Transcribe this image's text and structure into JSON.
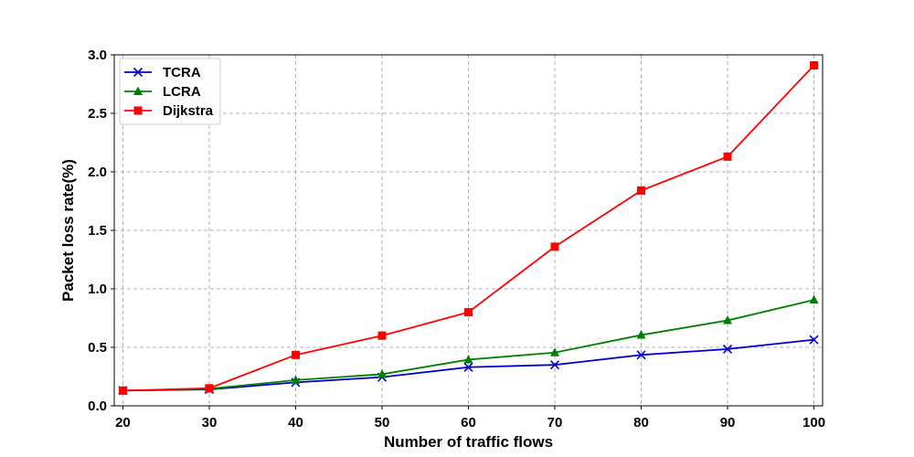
{
  "chart_data": {
    "type": "line",
    "xlabel": "Number of traffic flows",
    "ylabel": "Packet loss rate(%)",
    "x": [
      20,
      30,
      40,
      50,
      60,
      70,
      80,
      90,
      100
    ],
    "xlim": [
      19,
      101
    ],
    "ylim": [
      0,
      3.0
    ],
    "xticks": [
      "20",
      "30",
      "40",
      "50",
      "60",
      "70",
      "80",
      "90",
      "100"
    ],
    "yticks": [
      "0.0",
      "0.5",
      "1.0",
      "1.5",
      "2.0",
      "2.5",
      "3.0"
    ],
    "grid": true,
    "legend_position": "top-left",
    "series": [
      {
        "name": "TCRA",
        "color": "#0000cc",
        "marker": "x",
        "values": [
          0.13,
          0.14,
          0.2,
          0.245,
          0.33,
          0.35,
          0.435,
          0.485,
          0.565
        ]
      },
      {
        "name": "LCRA",
        "color": "#008000",
        "marker": "triangle",
        "values": [
          0.13,
          0.145,
          0.22,
          0.27,
          0.395,
          0.455,
          0.605,
          0.73,
          0.905
        ]
      },
      {
        "name": "Dijkstra",
        "color": "#ff0000",
        "marker": "square",
        "values": [
          0.13,
          0.15,
          0.435,
          0.6,
          0.8,
          1.36,
          1.84,
          2.13,
          2.91
        ]
      }
    ]
  }
}
